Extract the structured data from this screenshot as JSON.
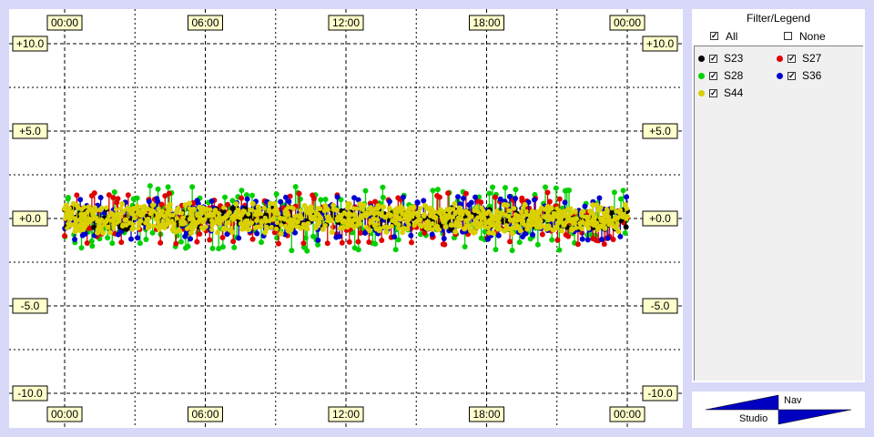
{
  "chart_data": {
    "type": "scatter",
    "x_ticks": [
      "00:00",
      "06:00",
      "12:00",
      "18:00",
      "00:00"
    ],
    "y_ticks": [
      "+10.0",
      "+5.0",
      "+0.0",
      "-5.0",
      "-10.0"
    ],
    "ylim": [
      -10,
      10
    ],
    "xlim": [
      "00:00",
      "24:00"
    ],
    "grid": true,
    "y_band": [
      -1.8,
      1.9
    ],
    "series": [
      {
        "name": "S23",
        "color": "#000000",
        "spread": 0.5
      },
      {
        "name": "S27",
        "color": "#e00000",
        "spread": 1.2
      },
      {
        "name": "S28",
        "color": "#00d000",
        "spread": 1.5
      },
      {
        "name": "S36",
        "color": "#0000d0",
        "spread": 1.0
      },
      {
        "name": "S44",
        "color": "#d8d000",
        "spread": 0.7
      }
    ]
  },
  "legend": {
    "title": "Filter/Legend",
    "all_label": "All",
    "none_label": "None",
    "items": [
      {
        "label": "S23",
        "color": "#000000",
        "checked": true
      },
      {
        "label": "S27",
        "color": "#e00000",
        "checked": true
      },
      {
        "label": "S28",
        "color": "#00d000",
        "checked": true
      },
      {
        "label": "S36",
        "color": "#0000d0",
        "checked": true
      },
      {
        "label": "S44",
        "color": "#d8d000",
        "checked": true
      }
    ]
  },
  "nav": {
    "nav_label": "Nav",
    "studio_label": "Studio"
  },
  "colors": {
    "background": "#d8d8f8",
    "tick_label_bg": "#ffffcc",
    "nav_arrow": "#0000c0"
  }
}
